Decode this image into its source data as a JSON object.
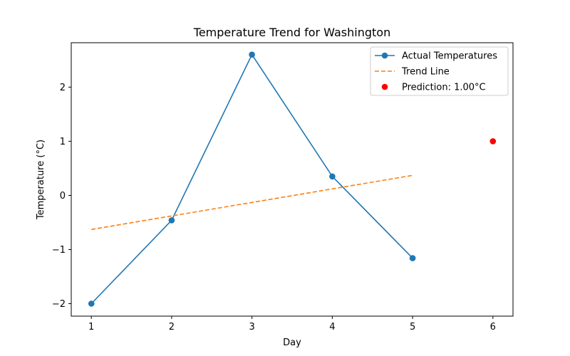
{
  "chart_data": {
    "type": "line",
    "title": "Temperature Trend for Washington",
    "xlabel": "Day",
    "ylabel": "Temperature (°C)",
    "xlim": [
      0.75,
      6.25
    ],
    "ylim": [
      -2.23,
      2.82
    ],
    "xticks": [
      1,
      2,
      3,
      4,
      5,
      6
    ],
    "yticks": [
      -2,
      -1,
      0,
      1,
      2
    ],
    "ytick_labels": [
      "−2",
      "−1",
      "0",
      "1",
      "2"
    ],
    "grid": false,
    "legend_position": "top-right",
    "series": [
      {
        "name": "Actual Temperatures",
        "kind": "line-markers",
        "color": "#1f77b4",
        "x": [
          1,
          2,
          3,
          4,
          5
        ],
        "y": [
          -2.0,
          -0.46,
          2.6,
          0.35,
          -1.16
        ]
      },
      {
        "name": "Trend Line",
        "kind": "dashed-line",
        "color": "#ff7f0e",
        "x": [
          1,
          5
        ],
        "y": [
          -0.63,
          0.37
        ]
      },
      {
        "name": "Prediction: 1.00°C",
        "kind": "scatter",
        "color": "#ff0000",
        "x": [
          6
        ],
        "y": [
          1.0
        ]
      }
    ]
  }
}
